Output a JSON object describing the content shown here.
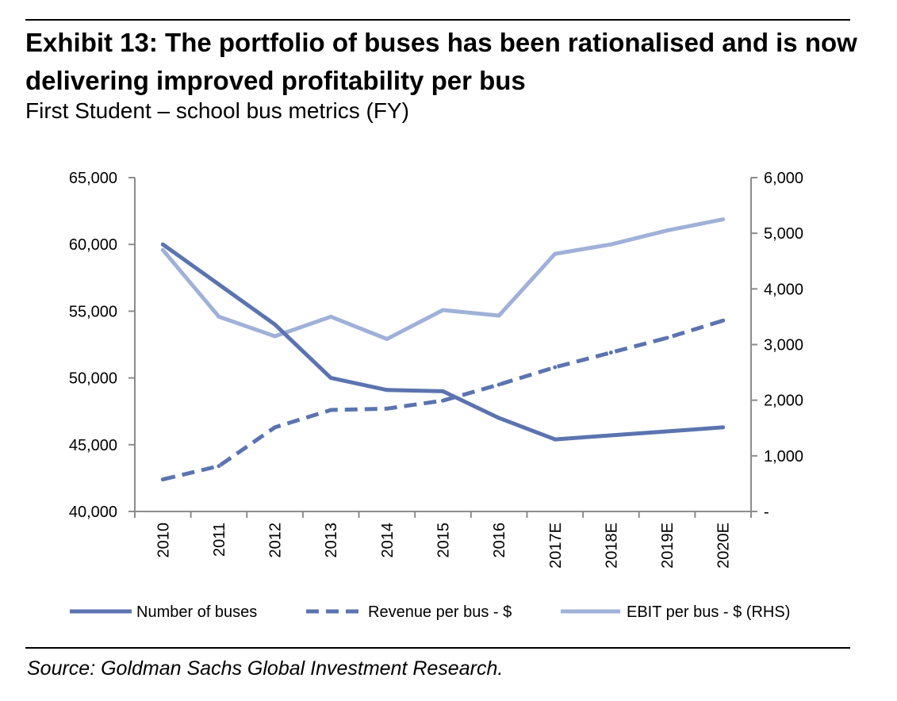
{
  "header": {
    "title": "Exhibit 13: The portfolio of buses has been rationalised and is now delivering improved profitability per bus",
    "subtitle": "First Student – school bus metrics (FY)"
  },
  "footer": {
    "source": "Source: Goldman Sachs Global Investment Research."
  },
  "chart_data": {
    "type": "line",
    "title": "",
    "xlabel": "",
    "ylabel": "",
    "categories": [
      "2010",
      "2011",
      "2012",
      "2013",
      "2014",
      "2015",
      "2016",
      "2017E",
      "2018E",
      "2019E",
      "2020E"
    ],
    "y_left": {
      "lim": [
        40000,
        65000
      ],
      "ticks": [
        40000,
        45000,
        50000,
        55000,
        60000,
        65000
      ],
      "tick_labels": [
        "40,000",
        "45,000",
        "50,000",
        "55,000",
        "60,000",
        "65,000"
      ]
    },
    "y_right": {
      "lim": [
        0,
        6000
      ],
      "ticks": [
        0,
        1000,
        2000,
        3000,
        4000,
        5000,
        6000
      ],
      "tick_labels": [
        "-",
        "1,000",
        "2,000",
        "3,000",
        "4,000",
        "5,000",
        "6,000"
      ]
    },
    "grid": false,
    "legend_position": "bottom",
    "series": [
      {
        "name": "Number of buses",
        "axis": "left",
        "style": "solid",
        "color": "#5b74b0",
        "values": [
          60000,
          57000,
          54000,
          50000,
          49100,
          49000,
          47000,
          45400,
          45700,
          46000,
          46300
        ]
      },
      {
        "name": "Revenue per bus - $",
        "axis": "left",
        "style": "dashed",
        "color": "#5b74b0",
        "values": [
          42400,
          43400,
          46300,
          47600,
          47700,
          48300,
          49500,
          50800,
          51900,
          53000,
          54300
        ]
      },
      {
        "name": "EBIT per bus - $ (RHS)",
        "axis": "right",
        "style": "solid",
        "color": "#9fb1d8",
        "values": [
          4700,
          3500,
          3150,
          3500,
          3100,
          3620,
          3520,
          4630,
          4800,
          5050,
          5250
        ]
      }
    ]
  }
}
